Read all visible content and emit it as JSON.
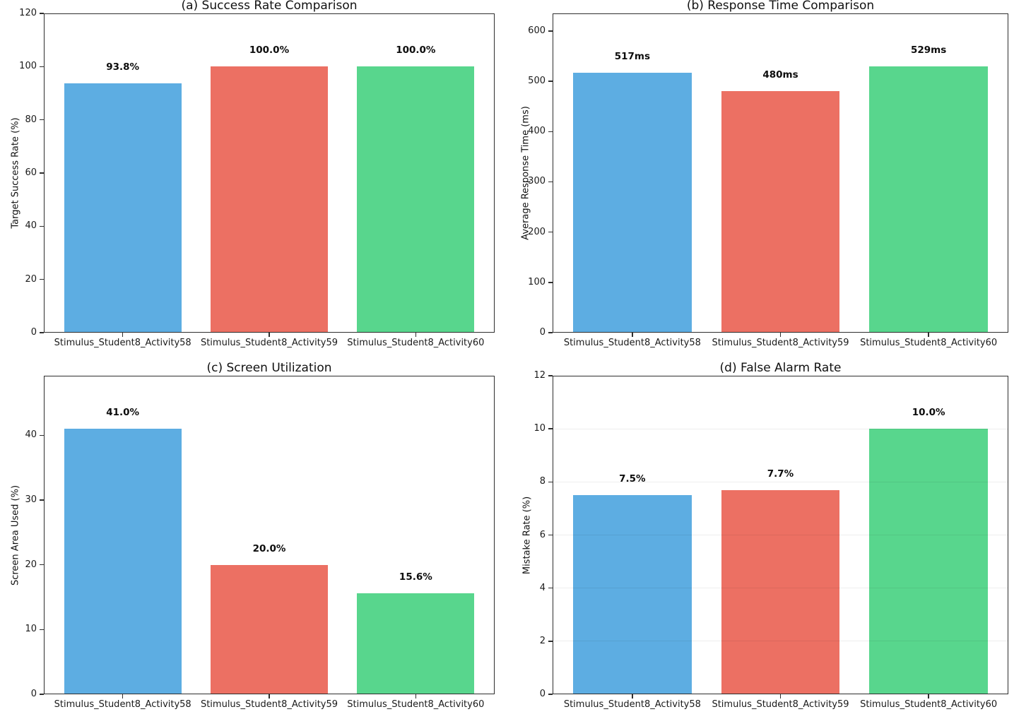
{
  "figure": {
    "background": "#ffffff",
    "bar_colors": [
      "#5dade2",
      "#ec7063",
      "#58d68d"
    ],
    "spine_color": "#2e2e2e",
    "grid_color": "#e8e8e8",
    "text_color": "#1a1a1a"
  },
  "chart_data": [
    {
      "type": "bar",
      "title": "(a) Success Rate Comparison",
      "xlabel": "",
      "ylabel": "Target Success Rate (%)",
      "categories": [
        "Stimulus_Student8_Activity58",
        "Stimulus_Student8_Activity59",
        "Stimulus_Student8_Activity60"
      ],
      "values": [
        93.8,
        100.0,
        100.0
      ],
      "bar_labels": [
        "93.8%",
        "100.0%",
        "100.0%"
      ],
      "yticks": [
        0,
        20,
        40,
        60,
        80,
        100,
        120
      ],
      "ylim": [
        0,
        120
      ],
      "grid": false,
      "legend_position": "none"
    },
    {
      "type": "bar",
      "title": "(b) Response Time Comparison",
      "xlabel": "",
      "ylabel": "Average Response Time (ms)",
      "categories": [
        "Stimulus_Student8_Activity58",
        "Stimulus_Student8_Activity59",
        "Stimulus_Student8_Activity60"
      ],
      "values": [
        517,
        480,
        529
      ],
      "bar_labels": [
        "517ms",
        "480ms",
        "529ms"
      ],
      "yticks": [
        0,
        100,
        200,
        300,
        400,
        500,
        600
      ],
      "ylim": [
        0,
        635
      ],
      "grid": false,
      "legend_position": "none"
    },
    {
      "type": "bar",
      "title": "(c) Screen Utilization",
      "xlabel": "",
      "ylabel": "Screen Area Used (%)",
      "categories": [
        "Stimulus_Student8_Activity58",
        "Stimulus_Student8_Activity59",
        "Stimulus_Student8_Activity60"
      ],
      "values": [
        41.0,
        20.0,
        15.6
      ],
      "bar_labels": [
        "41.0%",
        "20.0%",
        "15.6%"
      ],
      "yticks": [
        0,
        10,
        20,
        30,
        40
      ],
      "ylim": [
        0,
        49.2
      ],
      "grid": false,
      "legend_position": "none"
    },
    {
      "type": "bar",
      "title": "(d) False Alarm Rate",
      "xlabel": "",
      "ylabel": "Mistake Rate (%)",
      "categories": [
        "Stimulus_Student8_Activity58",
        "Stimulus_Student8_Activity59",
        "Stimulus_Student8_Activity60"
      ],
      "values": [
        7.5,
        7.7,
        10.0
      ],
      "bar_labels": [
        "7.5%",
        "7.7%",
        "10.0%"
      ],
      "yticks": [
        0,
        2,
        4,
        6,
        8,
        10,
        12
      ],
      "ylim": [
        0,
        12
      ],
      "grid": true,
      "legend_position": "none"
    }
  ]
}
